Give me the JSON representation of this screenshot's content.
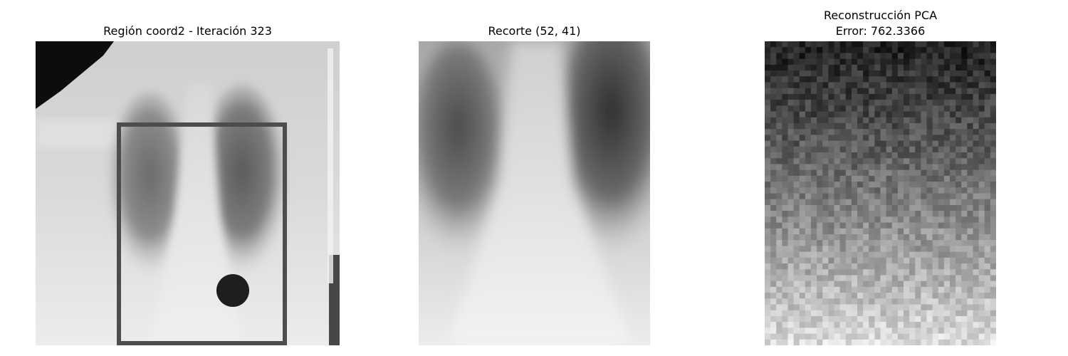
{
  "panels": [
    {
      "title": "Región coord2 - Iteración 323"
    },
    {
      "title": "Recorte (52, 41)"
    },
    {
      "title_line1": "Reconstrucción PCA",
      "title_line2": "Error: 762.3366"
    }
  ],
  "colors": {
    "roi_box": "#4d4d4d",
    "marker": "#1e1e1e"
  }
}
